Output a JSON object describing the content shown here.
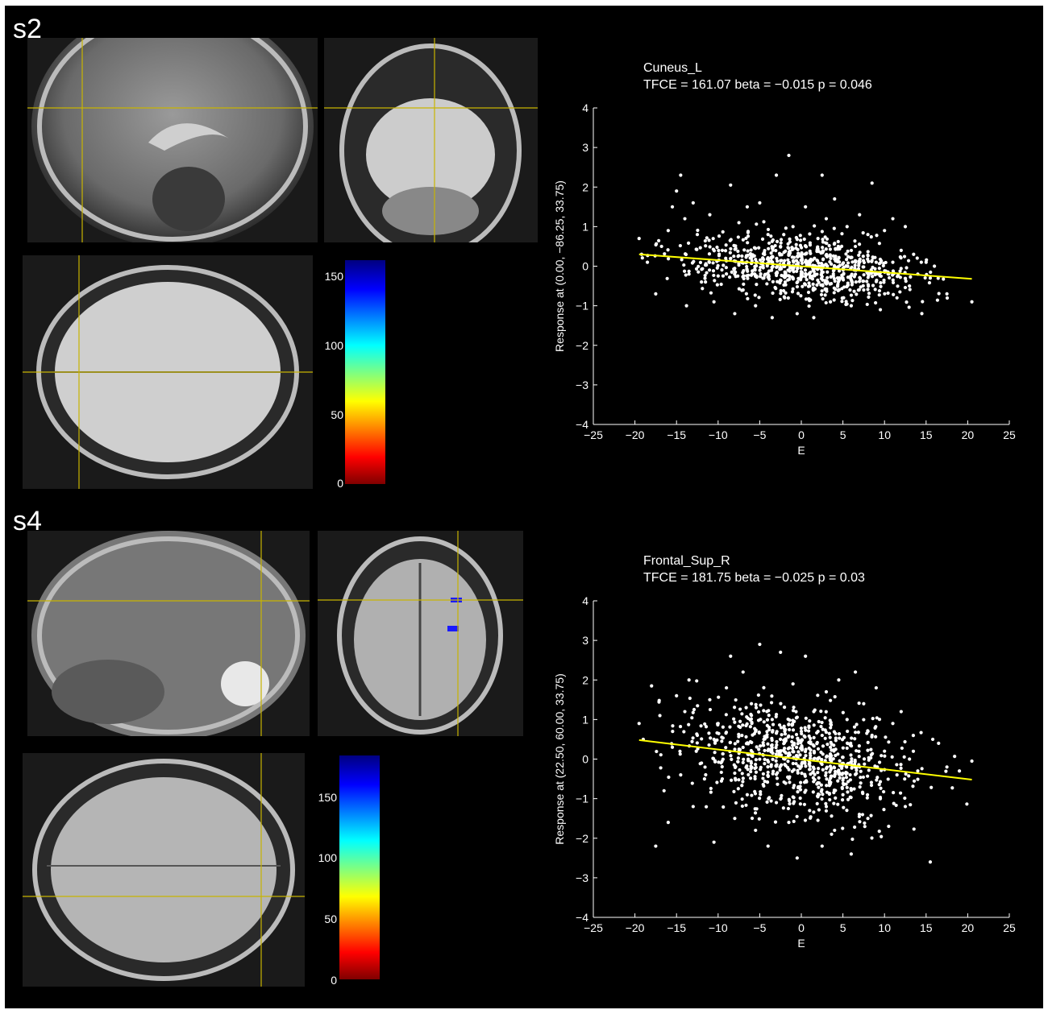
{
  "colors": {
    "background": "#000000",
    "points": "#ffffff",
    "fit_line": "#ffff00",
    "crosshair": "#c8b400",
    "highlight": "#1a1aff"
  },
  "panels": [
    {
      "label": "s2",
      "colorbar_ticks": [
        "150",
        "100",
        "50",
        "0"
      ],
      "colorbar_max": 160
    },
    {
      "label": "s4",
      "colorbar_ticks": [
        "150",
        "100",
        "50",
        "0"
      ],
      "colorbar_max": 180
    }
  ],
  "chart_data": [
    {
      "type": "scatter",
      "title": "Cuneus_L",
      "subtitle": "TFCE = 161.07  beta = −0.015  p = 0.046",
      "xlabel": "E",
      "ylabel": "Response at (0.00, −86.25, 33.75)",
      "xlim": [
        -25,
        25
      ],
      "ylim": [
        -4,
        4
      ],
      "xticks": [
        -25,
        -20,
        -15,
        -10,
        -5,
        0,
        5,
        10,
        15,
        20,
        25
      ],
      "yticks": [
        -4,
        -3,
        -2,
        -1,
        0,
        1,
        2,
        3,
        4
      ],
      "fit_line": {
        "x": [
          -19.5,
          20.5
        ],
        "y": [
          0.3,
          -0.32
        ]
      },
      "n_points_approx": 800,
      "points": [
        [
          -19.5,
          0.7
        ],
        [
          -19.2,
          0.3
        ],
        [
          -18.5,
          0.1
        ],
        [
          -17.5,
          -0.7
        ],
        [
          -16.8,
          0.5
        ],
        [
          -16,
          0.9
        ],
        [
          -15.5,
          1.5
        ],
        [
          -15,
          1.9
        ],
        [
          -14.5,
          2.3
        ],
        [
          -14,
          1.2
        ],
        [
          -13.8,
          -1.0
        ],
        [
          -13.5,
          -0.2
        ],
        [
          -13,
          1.6
        ],
        [
          -12.5,
          0.8
        ],
        [
          -12,
          -0.4
        ],
        [
          -11,
          1.3
        ],
        [
          -10.5,
          -0.9
        ],
        [
          -9.5,
          0.4
        ],
        [
          -8.5,
          2.05
        ],
        [
          -8,
          -1.2
        ],
        [
          -7.5,
          1.1
        ],
        [
          -7,
          -0.6
        ],
        [
          -6.5,
          1.5
        ],
        [
          -6,
          0.2
        ],
        [
          -5.5,
          -1.0
        ],
        [
          -5,
          1.6
        ],
        [
          -4.5,
          -0.3
        ],
        [
          -4,
          0.8
        ],
        [
          -3.5,
          -1.3
        ],
        [
          -3,
          2.3
        ],
        [
          -2.5,
          0.5
        ],
        [
          -2,
          -0.8
        ],
        [
          -1.5,
          2.8
        ],
        [
          -1,
          1.0
        ],
        [
          -0.5,
          -1.2
        ],
        [
          0,
          0.3
        ],
        [
          0.5,
          1.5
        ],
        [
          1,
          -0.5
        ],
        [
          1.5,
          -1.3
        ],
        [
          2,
          0.7
        ],
        [
          2.5,
          2.3
        ],
        [
          3,
          1.2
        ],
        [
          3.5,
          -0.9
        ],
        [
          4,
          1.7
        ],
        [
          4.5,
          0.2
        ],
        [
          5,
          -0.3
        ],
        [
          5.5,
          1.0
        ],
        [
          6,
          -1.0
        ],
        [
          6.5,
          0.5
        ],
        [
          7,
          1.3
        ],
        [
          7.5,
          -0.6
        ],
        [
          8,
          0.8
        ],
        [
          8.5,
          2.1
        ],
        [
          9,
          0.1
        ],
        [
          9.5,
          -1.1
        ],
        [
          10,
          0.9
        ],
        [
          10.5,
          -0.2
        ],
        [
          11,
          1.2
        ],
        [
          11.5,
          -0.8
        ],
        [
          12,
          0.4
        ],
        [
          12.5,
          1.0
        ],
        [
          13,
          -0.5
        ],
        [
          13.5,
          0.3
        ],
        [
          14,
          -0.2
        ],
        [
          15,
          0.1
        ],
        [
          15.5,
          -0.3
        ],
        [
          16,
          0.0
        ],
        [
          17.5,
          -0.7
        ],
        [
          20.5,
          -0.9
        ]
      ]
    },
    {
      "type": "scatter",
      "title": "Frontal_Sup_R",
      "subtitle": "TFCE = 181.75  beta = −0.025  p = 0.03",
      "xlabel": "E",
      "ylabel": "Response at (22.50, 60.00, 33.75)",
      "xlim": [
        -25,
        25
      ],
      "ylim": [
        -4,
        4
      ],
      "xticks": [
        -25,
        -20,
        -15,
        -10,
        -5,
        0,
        5,
        10,
        15,
        20,
        25
      ],
      "yticks": [
        -4,
        -3,
        -2,
        -1,
        0,
        1,
        2,
        3,
        4
      ],
      "fit_line": {
        "x": [
          -19.5,
          20.5
        ],
        "y": [
          0.48,
          -0.52
        ]
      },
      "n_points_approx": 800,
      "points": [
        [
          -19.5,
          0.9
        ],
        [
          -19,
          0.5
        ],
        [
          -18,
          1.85
        ],
        [
          -17.5,
          -2.2
        ],
        [
          -17,
          1.1
        ],
        [
          -16.5,
          -0.8
        ],
        [
          -16,
          -1.6
        ],
        [
          -15.5,
          0.3
        ],
        [
          -15,
          1.6
        ],
        [
          -14.5,
          -0.4
        ],
        [
          -14,
          1.2
        ],
        [
          -13.5,
          2.0
        ],
        [
          -13,
          -1.2
        ],
        [
          -12.5,
          0.6
        ],
        [
          -12,
          -0.1
        ],
        [
          -11,
          1.5
        ],
        [
          -10.5,
          -2.1
        ],
        [
          -10,
          0.9
        ],
        [
          -9.5,
          -0.5
        ],
        [
          -9,
          1.8
        ],
        [
          -8.5,
          2.6
        ],
        [
          -8,
          -1.5
        ],
        [
          -7.5,
          0.2
        ],
        [
          -7,
          2.2
        ],
        [
          -6.5,
          -0.9
        ],
        [
          -6,
          1.4
        ],
        [
          -5.5,
          -1.8
        ],
        [
          -5,
          2.9
        ],
        [
          -4.5,
          0.5
        ],
        [
          -4,
          -2.2
        ],
        [
          -3.5,
          1.0
        ],
        [
          -3,
          -1.1
        ],
        [
          -2.5,
          2.7
        ],
        [
          -2,
          0.0
        ],
        [
          -1.5,
          -1.6
        ],
        [
          -1,
          1.9
        ],
        [
          -0.5,
          -2.5
        ],
        [
          0,
          0.7
        ],
        [
          0.5,
          2.6
        ],
        [
          1,
          -1.3
        ],
        [
          1.5,
          1.2
        ],
        [
          2,
          -0.6
        ],
        [
          2.5,
          -2.2
        ],
        [
          3,
          1.7
        ],
        [
          3.5,
          0.3
        ],
        [
          4,
          -1.8
        ],
        [
          4.5,
          2.0
        ],
        [
          5,
          -0.9
        ],
        [
          5.5,
          1.0
        ],
        [
          6,
          -2.4
        ],
        [
          6.5,
          2.2
        ],
        [
          7,
          -0.2
        ],
        [
          7.5,
          1.4
        ],
        [
          8,
          -1.5
        ],
        [
          8.5,
          0.6
        ],
        [
          9,
          1.8
        ],
        [
          9.5,
          -1.0
        ],
        [
          10,
          0.2
        ],
        [
          10.5,
          -1.7
        ],
        [
          11,
          0.9
        ],
        [
          11.5,
          -0.4
        ],
        [
          12,
          1.2
        ],
        [
          12.5,
          -1.2
        ],
        [
          13,
          0.0
        ],
        [
          14,
          -0.3
        ],
        [
          15.5,
          -2.6
        ],
        [
          15.8,
          0.5
        ],
        [
          16.5,
          0.4
        ],
        [
          17.5,
          -0.2
        ],
        [
          19,
          -0.3
        ],
        [
          20.5,
          -0.05
        ]
      ]
    }
  ]
}
